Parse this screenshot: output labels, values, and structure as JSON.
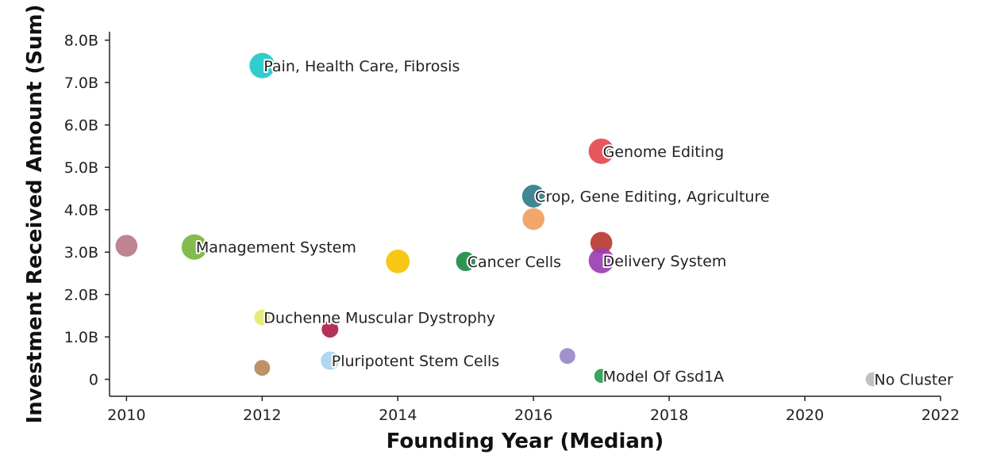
{
  "chart_data": {
    "type": "scatter",
    "xlabel": "Founding Year (Median)",
    "ylabel": "Investment Received Amount (Sum)",
    "xlim": [
      2009.75,
      2022
    ],
    "ylim": [
      -0.4,
      8.2
    ],
    "x_ticks": [
      2010,
      2012,
      2014,
      2016,
      2018,
      2020,
      2022
    ],
    "y_ticks": [
      {
        "value": 0,
        "label": "0"
      },
      {
        "value": 1,
        "label": "1.0B"
      },
      {
        "value": 2,
        "label": "2.0B"
      },
      {
        "value": 3,
        "label": "3.0B"
      },
      {
        "value": 4,
        "label": "4.0B"
      },
      {
        "value": 5,
        "label": "5.0B"
      },
      {
        "value": 6,
        "label": "6.0B"
      },
      {
        "value": 7,
        "label": "7.0B"
      },
      {
        "value": 8,
        "label": "8.0B"
      }
    ],
    "grid": false,
    "points": [
      {
        "label": "Pain, Health Care, Fibrosis",
        "x": 2012,
        "y": 7.4,
        "size": 1.0,
        "color": "#1fc8c8"
      },
      {
        "label": "Genome Editing",
        "x": 2017,
        "y": 5.38,
        "size": 1.0,
        "color": "#e5484d"
      },
      {
        "label": "Crop, Gene Editing, Agriculture",
        "x": 2016,
        "y": 4.32,
        "size": 0.85,
        "color": "#2f7d8a"
      },
      {
        "label": "",
        "x": 2016,
        "y": 3.78,
        "size": 0.8,
        "color": "#f0a060"
      },
      {
        "label": "",
        "x": 2017,
        "y": 3.22,
        "size": 0.8,
        "color": "#b83a30"
      },
      {
        "label": "",
        "x": 2010,
        "y": 3.15,
        "size": 0.8,
        "color": "#b87a88"
      },
      {
        "label": "Management System",
        "x": 2011,
        "y": 3.12,
        "size": 1.0,
        "color": "#7ab540"
      },
      {
        "label": "",
        "x": 2014,
        "y": 2.78,
        "size": 0.9,
        "color": "#f5c200"
      },
      {
        "label": "Cancer Cells",
        "x": 2015,
        "y": 2.78,
        "size": 0.65,
        "color": "#1e8c44"
      },
      {
        "label": "Delivery System",
        "x": 2017,
        "y": 2.8,
        "size": 1.0,
        "color": "#9b3fb0"
      },
      {
        "label": "Duchenne Muscular Dystrophy",
        "x": 2012,
        "y": 1.46,
        "size": 0.45,
        "color": "#e4e870"
      },
      {
        "label": "",
        "x": 2013,
        "y": 1.18,
        "size": 0.5,
        "color": "#b0204a"
      },
      {
        "label": "",
        "x": 2016.5,
        "y": 0.55,
        "size": 0.45,
        "color": "#9a88c8"
      },
      {
        "label": "Pluripotent Stem Cells",
        "x": 2013,
        "y": 0.44,
        "size": 0.6,
        "color": "#a8d4ec"
      },
      {
        "label": "",
        "x": 2012,
        "y": 0.27,
        "size": 0.45,
        "color": "#b8885a"
      },
      {
        "label": "Model Of Gsd1A",
        "x": 2017,
        "y": 0.08,
        "size": 0.35,
        "color": "#2a9c50"
      },
      {
        "label": "No Cluster",
        "x": 2021,
        "y": 0.0,
        "size": 0.35,
        "color": "#bbbbbb"
      }
    ]
  }
}
